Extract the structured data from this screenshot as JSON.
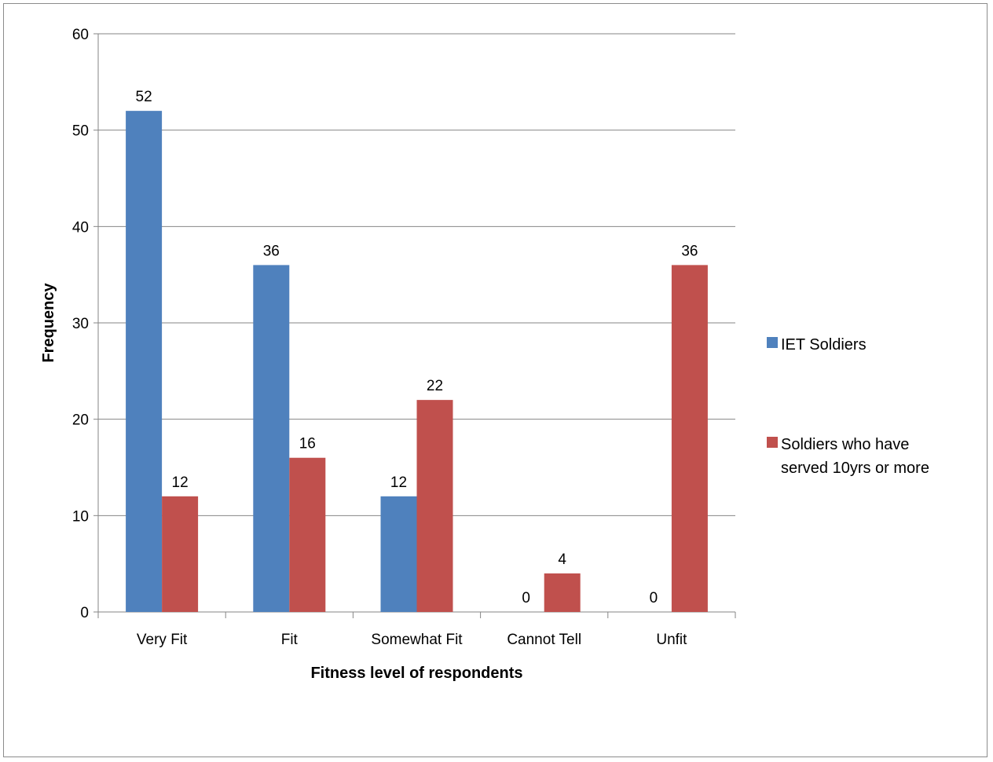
{
  "chart_data": {
    "type": "bar",
    "title": "",
    "xlabel": "Fitness level of respondents",
    "ylabel": "Frequency",
    "categories": [
      "Very Fit",
      "Fit",
      "Somewhat Fit",
      "Cannot Tell",
      "Unfit"
    ],
    "series": [
      {
        "name": "IET Soldiers",
        "color": "#4F81BD",
        "values": [
          52,
          36,
          12,
          0,
          0
        ]
      },
      {
        "name": "Soldiers who have served 10yrs or more",
        "legend_lines": [
          "Soldiers who have",
          "served 10yrs or more"
        ],
        "color": "#C0504D",
        "values": [
          12,
          16,
          22,
          4,
          36
        ]
      }
    ],
    "ylim": [
      0,
      60
    ],
    "yticks": [
      0,
      10,
      20,
      30,
      40,
      50,
      60
    ],
    "grid": true,
    "data_labels": true,
    "legend_position": "right"
  }
}
